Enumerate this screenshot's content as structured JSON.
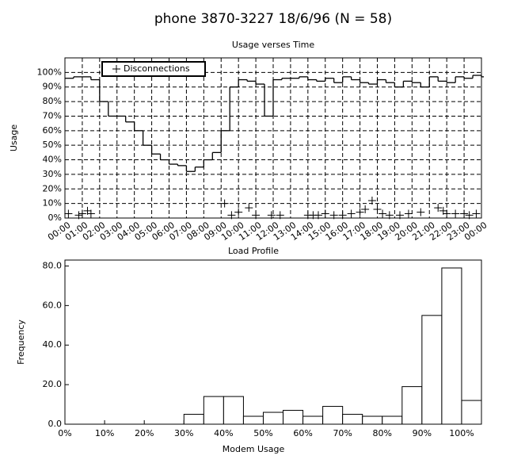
{
  "chart_data": [
    {
      "type": "line",
      "title": "phone 3870-3227 18/6/96 (N = 58)",
      "subtitle": "Usage verses Time",
      "xlabel": "Load Profile",
      "ylabel": "Usage",
      "color": "#000000",
      "grid": true,
      "legend": "upper left",
      "x": [
        0,
        0.5,
        1,
        1.5,
        2,
        2.5,
        3,
        3.5,
        4,
        4.5,
        5,
        5.5,
        6,
        6.5,
        7,
        7.5,
        8,
        8.5,
        9,
        9.5,
        10,
        10.5,
        11,
        11.5,
        12,
        12.5,
        13,
        13.5,
        14,
        14.5,
        15,
        15.5,
        16,
        16.5,
        17,
        17.5,
        18,
        18.5,
        19,
        19.5,
        20,
        20.5,
        21,
        21.5,
        22,
        22.5,
        23,
        23.5,
        24
      ],
      "values": [
        96,
        97,
        97,
        95,
        80,
        70,
        70,
        66,
        60,
        50,
        44,
        40,
        37,
        36,
        32,
        35,
        40,
        45,
        60,
        90,
        95,
        94,
        92,
        70,
        95,
        96,
        96,
        97,
        95,
        94,
        96,
        93,
        97,
        95,
        93,
        92,
        95,
        93,
        90,
        94,
        93,
        90,
        97,
        94,
        93,
        97,
        96,
        98,
        97
      ],
      "scatter": {
        "name": "Disconnections",
        "x": [
          0.2,
          0.8,
          1.0,
          1.3,
          1.5,
          9.2,
          9.6,
          10.0,
          10.6,
          11.0,
          11.9,
          12.4,
          14.0,
          14.3,
          14.6,
          15.0,
          15.5,
          16.0,
          16.5,
          17.0,
          17.3,
          17.7,
          18.0,
          18.3,
          18.7,
          19.3,
          19.8,
          20.5,
          21.5,
          21.8,
          22.0,
          22.5,
          23.0,
          23.3,
          23.7
        ],
        "y": [
          3,
          2,
          3,
          5,
          3,
          10,
          2,
          4,
          7,
          2,
          2,
          2,
          2,
          2,
          2,
          3,
          2,
          2,
          3,
          4,
          6,
          12,
          6,
          3,
          2,
          2,
          3,
          4,
          7,
          5,
          3,
          3,
          3,
          2,
          3
        ]
      },
      "xlim": [
        0,
        24
      ],
      "xticks": [
        {
          "value": 0,
          "label": "00:00"
        },
        {
          "value": 1,
          "label": "01:00"
        },
        {
          "value": 2,
          "label": "02:00"
        },
        {
          "value": 3,
          "label": "03:00"
        },
        {
          "value": 4,
          "label": "04:00"
        },
        {
          "value": 5,
          "label": "05:00"
        },
        {
          "value": 6,
          "label": "06:00"
        },
        {
          "value": 7,
          "label": "07:00"
        },
        {
          "value": 8,
          "label": "08:00"
        },
        {
          "value": 9,
          "label": "09:00"
        },
        {
          "value": 10,
          "label": "10:00"
        },
        {
          "value": 11,
          "label": "11:00"
        },
        {
          "value": 12,
          "label": "12:00"
        },
        {
          "value": 13,
          "label": "13:00"
        },
        {
          "value": 14,
          "label": "14:00"
        },
        {
          "value": 15,
          "label": "15:00"
        },
        {
          "value": 16,
          "label": "16:00"
        },
        {
          "value": 17,
          "label": "17:00"
        },
        {
          "value": 18,
          "label": "18:00"
        },
        {
          "value": 19,
          "label": "19:00"
        },
        {
          "value": 20,
          "label": "20:00"
        },
        {
          "value": 21,
          "label": "21:00"
        },
        {
          "value": 22,
          "label": "22:00"
        },
        {
          "value": 23,
          "label": "23:00"
        },
        {
          "value": 24,
          "label": "00:00"
        }
      ],
      "ylim": [
        0,
        110
      ],
      "yticks": [
        {
          "value": 0,
          "label": "0%"
        },
        {
          "value": 10,
          "label": "10%"
        },
        {
          "value": 20,
          "label": "20%"
        },
        {
          "value": 30,
          "label": "30%"
        },
        {
          "value": 40,
          "label": "40%"
        },
        {
          "value": 50,
          "label": "50%"
        },
        {
          "value": 60,
          "label": "60%"
        },
        {
          "value": 70,
          "label": "70%"
        },
        {
          "value": 80,
          "label": "80%"
        },
        {
          "value": 90,
          "label": "90%"
        },
        {
          "value": 100,
          "label": "100%"
        }
      ]
    },
    {
      "type": "histogram",
      "xlabel": "Modem Usage",
      "ylabel": "Frequency",
      "color": "#ffffff",
      "grid": false,
      "bins": [
        0,
        5,
        10,
        15,
        20,
        25,
        30,
        35,
        40,
        45,
        50,
        55,
        60,
        65,
        70,
        75,
        80,
        85,
        90,
        95,
        100,
        105
      ],
      "counts": [
        0,
        0,
        0,
        0,
        0,
        0,
        5,
        14,
        14,
        4,
        6,
        7,
        4,
        9,
        5,
        4,
        4,
        19,
        55,
        79,
        12
      ],
      "xlim": [
        0,
        105
      ],
      "xticks": [
        {
          "value": 0,
          "label": "0%"
        },
        {
          "value": 10,
          "label": "10%"
        },
        {
          "value": 20,
          "label": "20%"
        },
        {
          "value": 30,
          "label": "30%"
        },
        {
          "value": 40,
          "label": "40%"
        },
        {
          "value": 50,
          "label": "50%"
        },
        {
          "value": 60,
          "label": "60%"
        },
        {
          "value": 70,
          "label": "70%"
        },
        {
          "value": 80,
          "label": "80%"
        },
        {
          "value": 90,
          "label": "90%"
        },
        {
          "value": 100,
          "label": "100%"
        }
      ],
      "ylim": [
        0,
        83
      ],
      "yticks": [
        {
          "value": 0,
          "label": "0.0"
        },
        {
          "value": 20,
          "label": "20.0"
        },
        {
          "value": 40,
          "label": "40.0"
        },
        {
          "value": 60,
          "label": "60.0"
        },
        {
          "value": 80,
          "label": "80.0"
        }
      ]
    }
  ]
}
